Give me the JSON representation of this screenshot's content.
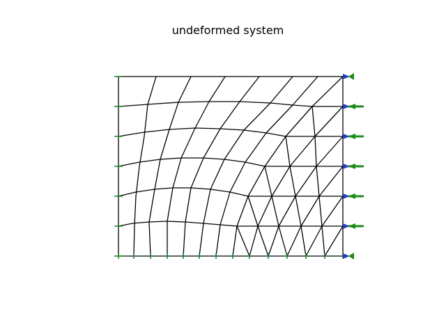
{
  "figure": {
    "title": "undeformed system"
  },
  "colors": {
    "mesh": "#000000",
    "support": "#1f8a1f",
    "load_arrow_blue": "#1f3fbf",
    "load_arrow_green": "#1a8a1a",
    "background": "#ffffff"
  },
  "mesh": {
    "structured_region": "quadrilateral elements, curved grid lines",
    "refined_region": "triangular elements near right-bottom corner"
  }
}
